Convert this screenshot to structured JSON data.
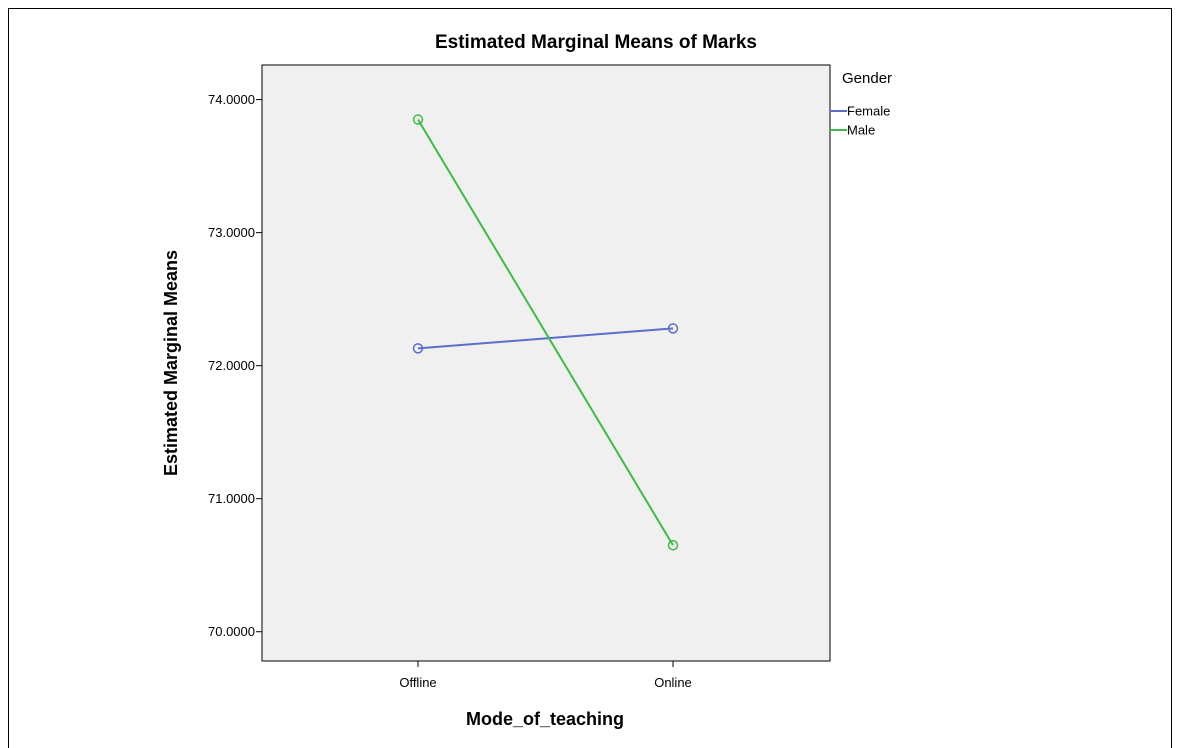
{
  "chart_data": {
    "type": "line",
    "title": "Estimated Marginal Means of Marks",
    "xlabel": "Mode_of_teaching",
    "ylabel": "Estimated Marginal Means",
    "categories": [
      "Offline",
      "Online"
    ],
    "ylim": [
      69.78,
      74.26
    ],
    "yticks": [
      70.0,
      71.0,
      72.0,
      73.0,
      74.0
    ],
    "ytick_labels": [
      "70.0000",
      "71.0000",
      "72.0000",
      "73.0000",
      "74.0000"
    ],
    "grid": false,
    "legend": {
      "title": "Gender",
      "placement": "right"
    },
    "series": [
      {
        "name": "Female",
        "values": [
          72.13,
          72.28
        ],
        "color": "#5b6ec9",
        "marker": "open-circle"
      },
      {
        "name": "Male",
        "values": [
          73.85,
          70.65
        ],
        "color": "#3dbb46",
        "marker": "open-circle"
      }
    ],
    "plot_background": "#f0f0f0"
  }
}
